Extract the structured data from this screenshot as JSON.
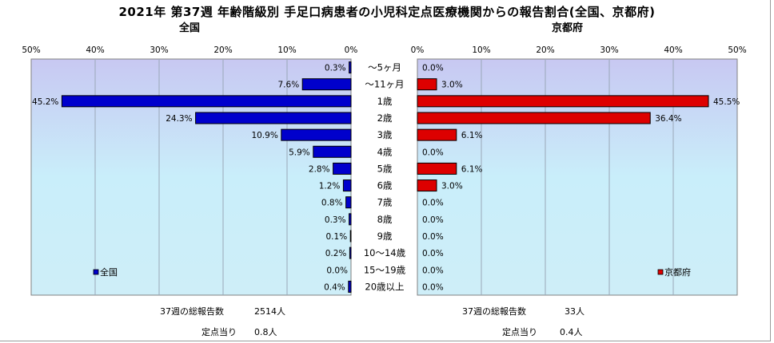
{
  "title": "2021年 第37週 年齢階級別 手足口病患者の小児科定点医療機関からの報告割合(全国、京都府)",
  "chart_data": [
    {
      "type": "bar",
      "panel": "左",
      "subtitle": "全国",
      "legend": "全国",
      "legend_position": "bottom-left",
      "color": "#0000cc",
      "xlim": [
        0,
        50
      ],
      "direction": "reversed",
      "ticks": [
        "50%",
        "40%",
        "30%",
        "20%",
        "10%",
        "0%"
      ],
      "categories": [
        "～5ヶ月",
        "～11ヶ月",
        "1歳",
        "2歳",
        "3歳",
        "4歳",
        "5歳",
        "6歳",
        "7歳",
        "8歳",
        "9歳",
        "10～14歳",
        "15～19歳",
        "20歳以上"
      ],
      "values": [
        0.3,
        7.6,
        45.2,
        24.3,
        10.9,
        5.9,
        2.8,
        1.2,
        0.8,
        0.3,
        0.1,
        0.2,
        0.0,
        0.4
      ],
      "data_labels": [
        "0.3%",
        "7.6%",
        "45.2%",
        "24.3%",
        "10.9%",
        "5.9%",
        "2.8%",
        "1.2%",
        "0.8%",
        "0.3%",
        "0.1%",
        "0.2%",
        "0.0%",
        "0.4%"
      ],
      "grid": true
    },
    {
      "type": "bar",
      "panel": "右",
      "subtitle": "京都府",
      "legend": "京都府",
      "legend_position": "bottom-right",
      "color": "#dd0000",
      "xlim": [
        0,
        50
      ],
      "direction": "normal",
      "ticks": [
        "0%",
        "10%",
        "20%",
        "30%",
        "40%",
        "50%"
      ],
      "categories": [
        "～5ヶ月",
        "～11ヶ月",
        "1歳",
        "2歳",
        "3歳",
        "4歳",
        "5歳",
        "6歳",
        "7歳",
        "8歳",
        "9歳",
        "10～14歳",
        "15～19歳",
        "20歳以上"
      ],
      "values": [
        0.0,
        3.0,
        45.5,
        36.4,
        6.1,
        0.0,
        6.1,
        3.0,
        0.0,
        0.0,
        0.0,
        0.0,
        0.0,
        0.0
      ],
      "data_labels": [
        "0.0%",
        "3.0%",
        "45.5%",
        "36.4%",
        "6.1%",
        "0.0%",
        "6.1%",
        "3.0%",
        "0.0%",
        "0.0%",
        "0.0%",
        "0.0%",
        "0.0%",
        "0.0%"
      ],
      "grid": true
    }
  ],
  "footer": {
    "left_total_label": "37週の総報告数",
    "left_total_value": "2514人",
    "left_per_label": "定点当り",
    "left_per_value": "0.8人",
    "right_total_label": "37週の総報告数",
    "right_total_value": "33人",
    "right_per_label": "定点当り",
    "right_per_value": "0.4人"
  }
}
